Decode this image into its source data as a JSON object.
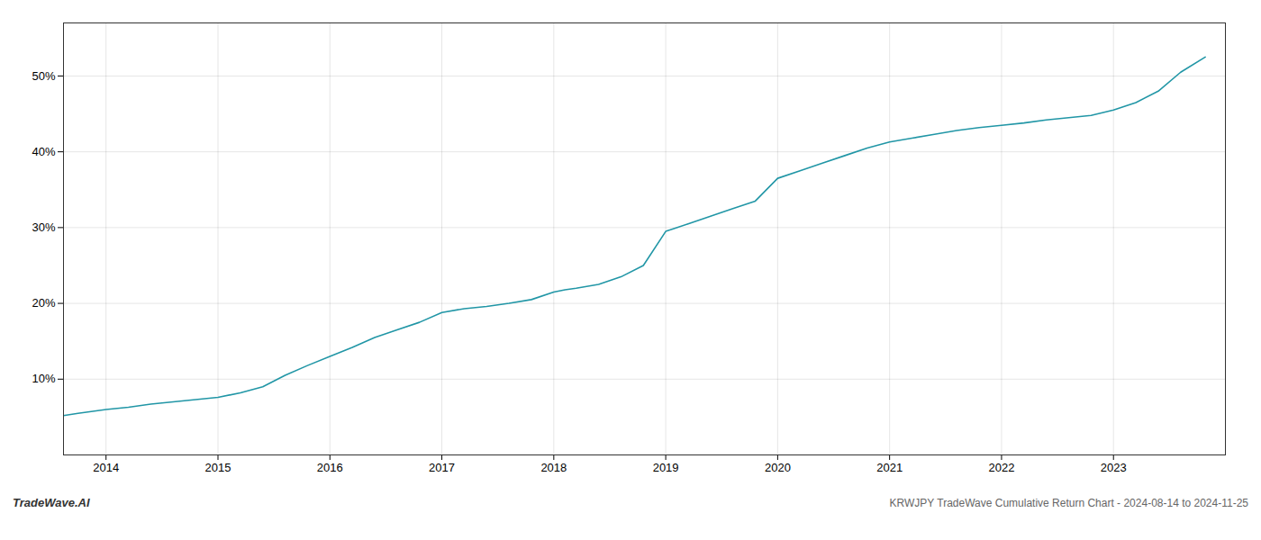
{
  "chart_data": {
    "type": "line",
    "title": "KRWJPY TradeWave Cumulative Return Chart - 2024-08-14 to 2024-11-25",
    "annotation": "TradeWave.AI",
    "x": [
      2013.62,
      2013.75,
      2014.0,
      2014.2,
      2014.4,
      2014.6,
      2014.8,
      2015.0,
      2015.2,
      2015.4,
      2015.6,
      2015.8,
      2016.0,
      2016.2,
      2016.4,
      2016.6,
      2016.8,
      2017.0,
      2017.2,
      2017.4,
      2017.6,
      2017.8,
      2018.0,
      2018.1,
      2018.2,
      2018.4,
      2018.6,
      2018.8,
      2019.0,
      2019.2,
      2019.4,
      2019.6,
      2019.8,
      2020.0,
      2020.2,
      2020.4,
      2020.6,
      2020.8,
      2021.0,
      2021.2,
      2021.4,
      2021.6,
      2021.8,
      2022.0,
      2022.2,
      2022.4,
      2022.6,
      2022.8,
      2023.0,
      2023.2,
      2023.4,
      2023.6,
      2023.82
    ],
    "values": [
      5.2,
      5.5,
      6.0,
      6.3,
      6.7,
      7.0,
      7.3,
      7.6,
      8.2,
      9.0,
      10.5,
      11.8,
      13.0,
      14.2,
      15.5,
      16.5,
      17.5,
      18.8,
      19.3,
      19.6,
      20.0,
      20.5,
      21.5,
      21.8,
      22.0,
      22.5,
      23.5,
      25.0,
      29.5,
      30.5,
      31.5,
      32.5,
      33.5,
      36.5,
      37.5,
      38.5,
      39.5,
      40.5,
      41.3,
      41.8,
      42.3,
      42.8,
      43.2,
      43.5,
      43.8,
      44.2,
      44.5,
      44.8,
      45.5,
      46.5,
      48.0,
      50.5,
      52.5
    ],
    "color": "#2196a6",
    "xlim": [
      2013.62,
      2024.0
    ],
    "xticks": [
      2014,
      2015,
      2016,
      2017,
      2018,
      2019,
      2020,
      2021,
      2022,
      2023
    ],
    "ylim": [
      0,
      57
    ],
    "yticks": [
      {
        "value": 10,
        "label": "10%"
      },
      {
        "value": 20,
        "label": "20%"
      },
      {
        "value": 30,
        "label": "30%"
      },
      {
        "value": 40,
        "label": "40%"
      },
      {
        "value": 50,
        "label": "50%"
      }
    ],
    "grid": true
  }
}
